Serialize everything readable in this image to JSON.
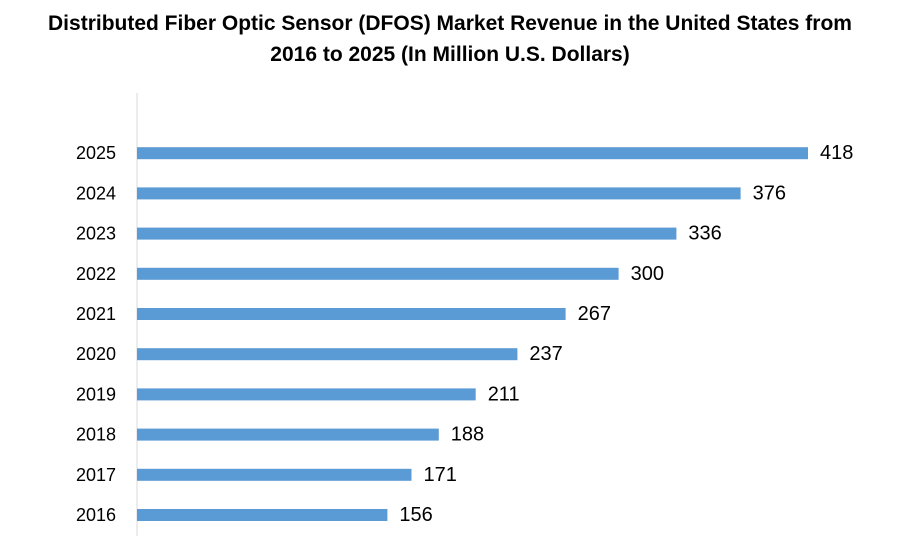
{
  "chart_data": {
    "type": "bar",
    "orientation": "horizontal",
    "title_lines": [
      "Distributed Fiber Optic Sensor (DFOS) Market Revenue in the United States from",
      "2016 to 2025 (In Million U.S. Dollars)"
    ],
    "categories": [
      "2016",
      "2017",
      "2018",
      "2019",
      "2020",
      "2021",
      "2022",
      "2023",
      "2024",
      "2025"
    ],
    "values": [
      156,
      171,
      188,
      211,
      237,
      267,
      300,
      336,
      376,
      418
    ],
    "data_labels": [
      "156",
      "171",
      "188",
      "211",
      "237",
      "267",
      "300",
      "336",
      "376",
      "418"
    ],
    "xlim": [
      0,
      418
    ],
    "grid": false,
    "legend": "none",
    "bar_color": "#5b9bd5",
    "axis_color": "#d9d9d9"
  }
}
